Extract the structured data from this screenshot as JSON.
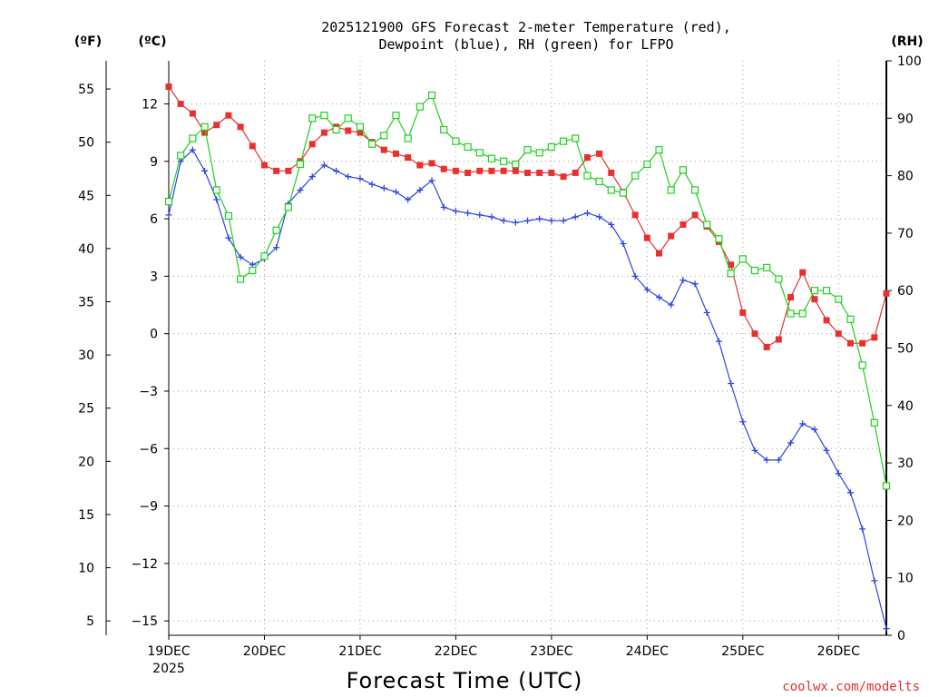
{
  "chart_data": {
    "type": "line",
    "title_line1": "2025121900 GFS Forecast 2-meter Temperature (red),",
    "title_line2": "Dewpoint (blue), RH (green) for LFPO",
    "xlabel": "Forecast Time (UTC)",
    "credit": "coolwx.com/modelts",
    "units": {
      "fahrenheit": "(ºF)",
      "celsius": "(ºC)",
      "rh": "(RH)"
    },
    "x_unit": "hours since 2025-12-19 00 UTC",
    "xlim": [
      0,
      180
    ],
    "x_ticks": [
      {
        "x": 0,
        "label": "19DEC",
        "sub": "2025"
      },
      {
        "x": 24,
        "label": "20DEC",
        "sub": ""
      },
      {
        "x": 48,
        "label": "21DEC",
        "sub": ""
      },
      {
        "x": 72,
        "label": "22DEC",
        "sub": ""
      },
      {
        "x": 96,
        "label": "23DEC",
        "sub": ""
      },
      {
        "x": 120,
        "label": "24DEC",
        "sub": ""
      },
      {
        "x": 144,
        "label": "25DEC",
        "sub": ""
      },
      {
        "x": 168,
        "label": "26DEC",
        "sub": ""
      }
    ],
    "ylim_c": [
      -15.75,
      14.25
    ],
    "y_ticks_c": [
      {
        "v": 12,
        "label": "12"
      },
      {
        "v": 9,
        "label": "9"
      },
      {
        "v": 6,
        "label": "6"
      },
      {
        "v": 3,
        "label": "3"
      },
      {
        "v": 0,
        "label": "0"
      },
      {
        "v": -3,
        "label": "−3"
      },
      {
        "v": -6,
        "label": "−6"
      },
      {
        "v": -9,
        "label": "−9"
      },
      {
        "v": -12,
        "label": "−12"
      },
      {
        "v": -15,
        "label": "−15"
      }
    ],
    "y_ticks_f": [
      "55",
      "50",
      "45",
      "40",
      "35",
      "30",
      "25",
      "20",
      "15",
      "10",
      "5"
    ],
    "ylim_rh": [
      0,
      100
    ],
    "y_ticks_rh": [
      "0",
      "10",
      "20",
      "30",
      "40",
      "50",
      "60",
      "70",
      "80",
      "90",
      "100"
    ],
    "series": [
      {
        "name": "Temperature (°C)",
        "color": "#e8302e",
        "marker": "square-filled",
        "axis": "c",
        "x": [
          0,
          3,
          6,
          9,
          12,
          15,
          18,
          21,
          24,
          27,
          30,
          33,
          36,
          39,
          42,
          45,
          48,
          51,
          54,
          57,
          60,
          63,
          66,
          69,
          72,
          75,
          78,
          81,
          84,
          87,
          90,
          93,
          96,
          99,
          102,
          105,
          108,
          111,
          114,
          117,
          120,
          123,
          126,
          129,
          132,
          135,
          138,
          141,
          144,
          147,
          150,
          153,
          156,
          159,
          162,
          165,
          168,
          171,
          174,
          177,
          180
        ],
        "values": [
          12.9,
          12.0,
          11.5,
          10.5,
          10.9,
          11.4,
          10.8,
          9.8,
          8.8,
          8.5,
          8.5,
          9.0,
          9.9,
          10.5,
          10.8,
          10.6,
          10.5,
          10.0,
          9.6,
          9.4,
          9.2,
          8.8,
          8.9,
          8.6,
          8.5,
          8.4,
          8.5,
          8.5,
          8.5,
          8.5,
          8.4,
          8.4,
          8.4,
          8.2,
          8.4,
          9.2,
          9.4,
          8.4,
          7.4,
          6.2,
          5.0,
          4.2,
          5.1,
          5.7,
          6.2,
          5.6,
          4.8,
          3.6,
          1.1,
          0.0,
          -0.7,
          -0.3,
          1.9,
          3.2,
          1.8,
          0.7,
          0.0,
          -0.5,
          -0.5,
          -0.2,
          2.1
        ]
      },
      {
        "name": "Dewpoint (°C)",
        "color": "#2d46e0",
        "marker": "plus",
        "axis": "c",
        "x": [
          0,
          3,
          6,
          9,
          12,
          15,
          18,
          21,
          24,
          27,
          30,
          33,
          36,
          39,
          42,
          45,
          48,
          51,
          54,
          57,
          60,
          63,
          66,
          69,
          72,
          75,
          78,
          81,
          84,
          87,
          90,
          93,
          96,
          99,
          102,
          105,
          108,
          111,
          114,
          117,
          120,
          123,
          126,
          129,
          132,
          135,
          138,
          141,
          144,
          147,
          150,
          153,
          156,
          159,
          162,
          165,
          168,
          171,
          174,
          177,
          180
        ],
        "values": [
          6.2,
          9.0,
          9.6,
          8.5,
          7.0,
          5.0,
          4.0,
          3.6,
          3.9,
          4.5,
          6.8,
          7.5,
          8.2,
          8.8,
          8.5,
          8.2,
          8.1,
          7.8,
          7.6,
          7.4,
          7.0,
          7.5,
          8.0,
          6.6,
          6.4,
          6.3,
          6.2,
          6.1,
          5.9,
          5.8,
          5.9,
          6.0,
          5.9,
          5.9,
          6.1,
          6.3,
          6.1,
          5.7,
          4.7,
          3.0,
          2.3,
          1.9,
          1.5,
          2.8,
          2.6,
          1.1,
          -0.4,
          -2.6,
          -4.6,
          -6.1,
          -6.6,
          -6.6,
          -5.7,
          -4.7,
          -5.0,
          -6.1,
          -7.3,
          -8.3,
          -10.2,
          -12.9,
          -15.4
        ]
      },
      {
        "name": "RH (%)",
        "color": "#1fd01f",
        "marker": "square-open",
        "axis": "rh",
        "x": [
          0,
          3,
          6,
          9,
          12,
          15,
          18,
          21,
          24,
          27,
          30,
          33,
          36,
          39,
          42,
          45,
          48,
          51,
          54,
          57,
          60,
          63,
          66,
          69,
          72,
          75,
          78,
          81,
          84,
          87,
          90,
          93,
          96,
          99,
          102,
          105,
          108,
          111,
          114,
          117,
          120,
          123,
          126,
          129,
          132,
          135,
          138,
          141,
          144,
          147,
          150,
          153,
          156,
          159,
          162,
          165,
          168,
          171,
          174,
          177,
          180
        ],
        "values": [
          75.5,
          83.5,
          86.5,
          88.5,
          77.5,
          73.0,
          62.0,
          63.5,
          66.0,
          70.5,
          74.5,
          82.0,
          90.0,
          90.5,
          88.0,
          90.0,
          88.5,
          85.5,
          87.0,
          90.5,
          86.5,
          92.0,
          94.0,
          88.0,
          86.0,
          85.0,
          84.0,
          83.0,
          82.5,
          82.0,
          84.5,
          84.0,
          85.0,
          86.0,
          86.5,
          80.0,
          79.0,
          77.5,
          77.0,
          80.0,
          82.0,
          84.5,
          77.5,
          81.0,
          77.5,
          71.5,
          69.0,
          63.0,
          65.5,
          63.5,
          64.0,
          62.0,
          56.0,
          56.0,
          60.0,
          60.0,
          58.5,
          55.0,
          47.0,
          37.0,
          26.0
        ]
      }
    ]
  }
}
